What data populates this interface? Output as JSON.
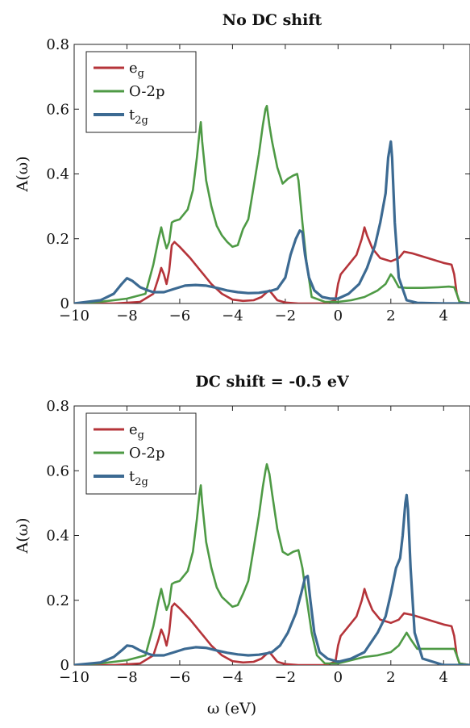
{
  "chart_data": [
    {
      "type": "line",
      "title": "No DC shift",
      "ylabel": "A(ω)",
      "xlabel": "",
      "xlim": [
        -10,
        5
      ],
      "ylim": [
        0,
        0.8
      ],
      "xticks": [
        -10,
        -8,
        -6,
        -4,
        -2,
        0,
        2,
        4
      ],
      "xtick_labels": [
        "−10",
        "−8",
        "−6",
        "−4",
        "−2",
        "0",
        "2",
        "4"
      ],
      "yticks": [
        0,
        0.2,
        0.4,
        0.6,
        0.8
      ],
      "ytick_labels": [
        "0",
        "0.2",
        "0.4",
        "0.6",
        "0.8"
      ],
      "legend_position": "top-left",
      "series": [
        {
          "name": "eg",
          "label_main": "e",
          "label_sub": "g",
          "color": "#b5343a",
          "x": [
            -10,
            -8.5,
            -7.5,
            -7,
            -6.8,
            -6.7,
            -6.6,
            -6.5,
            -6.4,
            -6.3,
            -6.2,
            -6.0,
            -5.6,
            -5.2,
            -4.8,
            -4.4,
            -4.0,
            -3.6,
            -3.2,
            -2.9,
            -2.7,
            -2.6,
            -2.5,
            -2.3,
            -2.0,
            -1.5,
            -1.0,
            -0.5,
            -0.1,
            0.0,
            0.1,
            0.4,
            0.7,
            0.9,
            1.0,
            1.1,
            1.3,
            1.6,
            2.0,
            2.3,
            2.5,
            2.8,
            3.2,
            3.6,
            4.0,
            4.3,
            4.4,
            4.5,
            4.6,
            5.0
          ],
          "y": [
            0.0,
            0.0,
            0.005,
            0.03,
            0.08,
            0.11,
            0.09,
            0.06,
            0.1,
            0.18,
            0.19,
            0.175,
            0.14,
            0.1,
            0.06,
            0.03,
            0.012,
            0.008,
            0.01,
            0.02,
            0.035,
            0.04,
            0.03,
            0.01,
            0.003,
            0.0,
            0.0,
            0.0,
            0.01,
            0.06,
            0.09,
            0.12,
            0.15,
            0.2,
            0.235,
            0.21,
            0.17,
            0.14,
            0.13,
            0.14,
            0.16,
            0.155,
            0.145,
            0.135,
            0.125,
            0.12,
            0.09,
            0.03,
            0.005,
            0.0
          ]
        },
        {
          "name": "O-2p",
          "label_main": "O-2p",
          "label_sub": "",
          "color": "#4e9a45",
          "x": [
            -10,
            -9.0,
            -8.0,
            -7.3,
            -7.0,
            -6.8,
            -6.7,
            -6.6,
            -6.5,
            -6.4,
            -6.3,
            -6.2,
            -6.0,
            -5.7,
            -5.5,
            -5.35,
            -5.25,
            -5.2,
            -5.15,
            -5.0,
            -4.8,
            -4.6,
            -4.4,
            -4.2,
            -4.0,
            -3.8,
            -3.6,
            -3.4,
            -3.2,
            -3.0,
            -2.85,
            -2.75,
            -2.7,
            -2.6,
            -2.5,
            -2.3,
            -2.1,
            -1.9,
            -1.7,
            -1.55,
            -1.5,
            -1.35,
            -1.2,
            -1.0,
            -0.5,
            0.0,
            0.5,
            1.0,
            1.5,
            1.8,
            2.0,
            2.1,
            2.3,
            2.6,
            3.2,
            3.8,
            4.2,
            4.4,
            4.5,
            4.6,
            5.0
          ],
          "y": [
            0.0,
            0.005,
            0.015,
            0.03,
            0.12,
            0.2,
            0.235,
            0.2,
            0.17,
            0.19,
            0.25,
            0.255,
            0.26,
            0.29,
            0.35,
            0.45,
            0.53,
            0.56,
            0.5,
            0.38,
            0.3,
            0.24,
            0.21,
            0.19,
            0.175,
            0.18,
            0.23,
            0.26,
            0.36,
            0.46,
            0.55,
            0.6,
            0.61,
            0.55,
            0.5,
            0.42,
            0.37,
            0.385,
            0.395,
            0.4,
            0.38,
            0.25,
            0.13,
            0.02,
            0.005,
            0.005,
            0.01,
            0.02,
            0.04,
            0.06,
            0.09,
            0.08,
            0.05,
            0.048,
            0.048,
            0.05,
            0.052,
            0.05,
            0.03,
            0.005,
            0.0
          ]
        },
        {
          "name": "t2g",
          "label_main": "t",
          "label_sub": "2g",
          "color": "#3c6a92",
          "x": [
            -10,
            -9.0,
            -8.5,
            -8.2,
            -8.0,
            -7.8,
            -7.5,
            -7.2,
            -7.0,
            -6.6,
            -6.2,
            -5.8,
            -5.4,
            -5.0,
            -4.6,
            -4.2,
            -3.8,
            -3.4,
            -3.0,
            -2.7,
            -2.5,
            -2.3,
            -2.0,
            -1.8,
            -1.6,
            -1.45,
            -1.35,
            -1.25,
            -1.1,
            -0.9,
            -0.6,
            -0.3,
            0.0,
            0.4,
            0.8,
            1.1,
            1.4,
            1.6,
            1.8,
            1.9,
            2.0,
            2.05,
            2.15,
            2.3,
            2.6,
            3.0,
            4.0,
            5.0
          ],
          "y": [
            0.0,
            0.01,
            0.03,
            0.06,
            0.078,
            0.07,
            0.05,
            0.04,
            0.035,
            0.035,
            0.045,
            0.055,
            0.057,
            0.055,
            0.048,
            0.04,
            0.035,
            0.032,
            0.033,
            0.037,
            0.04,
            0.045,
            0.08,
            0.15,
            0.2,
            0.225,
            0.22,
            0.15,
            0.08,
            0.04,
            0.02,
            0.015,
            0.015,
            0.03,
            0.06,
            0.11,
            0.18,
            0.25,
            0.34,
            0.45,
            0.5,
            0.45,
            0.25,
            0.08,
            0.01,
            0.002,
            0.0,
            0.0
          ]
        }
      ]
    },
    {
      "type": "line",
      "title": "DC shift = -0.5 eV",
      "ylabel": "A(ω)",
      "xlabel": "ω (eV)",
      "xlim": [
        -10,
        5
      ],
      "ylim": [
        0,
        0.8
      ],
      "xticks": [
        -10,
        -8,
        -6,
        -4,
        -2,
        0,
        2,
        4
      ],
      "xtick_labels": [
        "−10",
        "−8",
        "−6",
        "−4",
        "−2",
        "0",
        "2",
        "4"
      ],
      "yticks": [
        0,
        0.2,
        0.4,
        0.6,
        0.8
      ],
      "ytick_labels": [
        "0",
        "0.2",
        "0.4",
        "0.6",
        "0.8"
      ],
      "legend_position": "top-left",
      "series": [
        {
          "name": "eg",
          "label_main": "e",
          "label_sub": "g",
          "color": "#b5343a",
          "x": [
            -10,
            -8.5,
            -7.5,
            -7,
            -6.8,
            -6.7,
            -6.6,
            -6.5,
            -6.4,
            -6.3,
            -6.2,
            -6.0,
            -5.6,
            -5.2,
            -4.8,
            -4.4,
            -4.0,
            -3.6,
            -3.2,
            -2.9,
            -2.7,
            -2.6,
            -2.5,
            -2.3,
            -2.0,
            -1.5,
            -1.0,
            -0.5,
            -0.1,
            0.0,
            0.1,
            0.4,
            0.7,
            0.9,
            1.0,
            1.1,
            1.3,
            1.6,
            2.0,
            2.3,
            2.5,
            2.8,
            3.2,
            3.6,
            4.0,
            4.3,
            4.4,
            4.5,
            4.6,
            5.0
          ],
          "y": [
            0.0,
            0.0,
            0.005,
            0.03,
            0.08,
            0.11,
            0.09,
            0.06,
            0.1,
            0.18,
            0.19,
            0.175,
            0.14,
            0.1,
            0.06,
            0.03,
            0.012,
            0.008,
            0.01,
            0.02,
            0.035,
            0.04,
            0.03,
            0.01,
            0.003,
            0.0,
            0.0,
            0.0,
            0.01,
            0.06,
            0.09,
            0.12,
            0.15,
            0.2,
            0.235,
            0.21,
            0.17,
            0.14,
            0.13,
            0.14,
            0.16,
            0.155,
            0.145,
            0.135,
            0.125,
            0.12,
            0.09,
            0.03,
            0.005,
            0.0
          ]
        },
        {
          "name": "O-2p",
          "label_main": "O-2p",
          "label_sub": "",
          "color": "#4e9a45",
          "x": [
            -10,
            -9.0,
            -8.0,
            -7.3,
            -7.0,
            -6.8,
            -6.7,
            -6.6,
            -6.5,
            -6.4,
            -6.3,
            -6.2,
            -6.0,
            -5.7,
            -5.5,
            -5.35,
            -5.25,
            -5.2,
            -5.15,
            -5.0,
            -4.8,
            -4.6,
            -4.4,
            -4.2,
            -4.0,
            -3.8,
            -3.6,
            -3.4,
            -3.2,
            -3.0,
            -2.85,
            -2.75,
            -2.7,
            -2.6,
            -2.5,
            -2.3,
            -2.1,
            -1.9,
            -1.7,
            -1.5,
            -1.35,
            -1.2,
            -1.0,
            -0.8,
            -0.5,
            0.0,
            0.5,
            1.0,
            1.5,
            2.0,
            2.3,
            2.6,
            2.75,
            3.0,
            3.5,
            4.0,
            4.4,
            4.5,
            4.6,
            5.0
          ],
          "y": [
            0.0,
            0.005,
            0.015,
            0.03,
            0.12,
            0.2,
            0.235,
            0.2,
            0.17,
            0.19,
            0.25,
            0.255,
            0.26,
            0.29,
            0.35,
            0.45,
            0.53,
            0.555,
            0.5,
            0.38,
            0.3,
            0.24,
            0.21,
            0.195,
            0.18,
            0.185,
            0.22,
            0.26,
            0.36,
            0.46,
            0.55,
            0.6,
            0.62,
            0.59,
            0.53,
            0.42,
            0.35,
            0.34,
            0.35,
            0.355,
            0.3,
            0.21,
            0.1,
            0.03,
            0.005,
            0.005,
            0.015,
            0.025,
            0.03,
            0.04,
            0.06,
            0.1,
            0.08,
            0.05,
            0.05,
            0.05,
            0.05,
            0.03,
            0.005,
            0.0
          ]
        },
        {
          "name": "t2g",
          "label_main": "t",
          "label_sub": "2g",
          "color": "#3c6a92",
          "x": [
            -10,
            -9.0,
            -8.5,
            -8.2,
            -8.0,
            -7.8,
            -7.5,
            -7.2,
            -7.0,
            -6.6,
            -6.2,
            -5.8,
            -5.4,
            -5.0,
            -4.6,
            -4.2,
            -3.8,
            -3.4,
            -3.0,
            -2.7,
            -2.5,
            -2.2,
            -1.9,
            -1.6,
            -1.4,
            -1.25,
            -1.15,
            -1.05,
            -0.9,
            -0.7,
            -0.4,
            0.0,
            0.5,
            1.0,
            1.5,
            1.8,
            2.0,
            2.2,
            2.35,
            2.45,
            2.55,
            2.6,
            2.65,
            2.75,
            2.9,
            3.2,
            4.0,
            5.0
          ],
          "y": [
            0.0,
            0.008,
            0.025,
            0.045,
            0.06,
            0.058,
            0.045,
            0.035,
            0.03,
            0.03,
            0.04,
            0.05,
            0.055,
            0.053,
            0.045,
            0.038,
            0.033,
            0.03,
            0.032,
            0.036,
            0.04,
            0.06,
            0.1,
            0.16,
            0.22,
            0.27,
            0.275,
            0.2,
            0.1,
            0.04,
            0.02,
            0.01,
            0.02,
            0.04,
            0.1,
            0.15,
            0.22,
            0.3,
            0.33,
            0.4,
            0.5,
            0.525,
            0.48,
            0.3,
            0.1,
            0.02,
            0.0,
            0.0
          ]
        }
      ]
    }
  ]
}
